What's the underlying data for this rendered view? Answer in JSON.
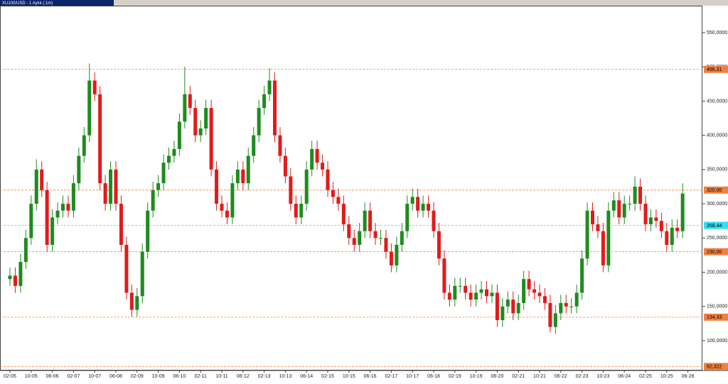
{
  "chart_data": {
    "type": "candlestick",
    "title": "XU100/USD - 1 Aylık (.1m)",
    "categories": [
      "02-05",
      null,
      null,
      null,
      "10-05",
      null,
      null,
      null,
      "06-06",
      null,
      null,
      null,
      "02-07",
      null,
      null,
      null,
      "10-07",
      null,
      null,
      null,
      "06-08",
      null,
      null,
      null,
      "02-09",
      null,
      null,
      null,
      "10-09",
      null,
      null,
      null,
      "06-10",
      null,
      null,
      null,
      "02-11",
      null,
      null,
      null,
      "10-11",
      null,
      null,
      null,
      "06-12",
      null,
      null,
      null,
      "02-13",
      null,
      null,
      null,
      "10-13",
      null,
      null,
      null,
      "06-14",
      null,
      null,
      null,
      "02-15",
      null,
      null,
      null,
      "10-15",
      null,
      null,
      null,
      "06-16",
      null,
      null,
      null,
      "02-17",
      null,
      null,
      null,
      "10-17",
      null,
      null,
      null,
      "06-18",
      null,
      null,
      null,
      "02-19",
      null,
      null,
      null,
      "10-19",
      null,
      null,
      null,
      "06-20",
      null,
      null,
      null,
      "02-21",
      null,
      null,
      null,
      "10-21",
      null,
      null,
      null,
      "06-22",
      null,
      null,
      null,
      "02-23",
      null,
      null,
      null,
      "10-23",
      null,
      null,
      null,
      "06-24",
      null,
      null,
      null,
      "02-25",
      null,
      null,
      null,
      "10-25",
      null,
      null,
      null,
      "06-26"
    ],
    "open": [
      190,
      195,
      180,
      215,
      250,
      300,
      350,
      320,
      240,
      280,
      290,
      300,
      290,
      330,
      370,
      400,
      480,
      460,
      330,
      300,
      350,
      300,
      240,
      170,
      145,
      165,
      230,
      290,
      320,
      330,
      360,
      370,
      380,
      420,
      460,
      440,
      400,
      410,
      440,
      350,
      300,
      290,
      280,
      330,
      350,
      330,
      370,
      400,
      440,
      460,
      480,
      400,
      370,
      340,
      300,
      280,
      300,
      350,
      380,
      360,
      350,
      320,
      310,
      300,
      270,
      250,
      240,
      260,
      290,
      260,
      250,
      250,
      230,
      210,
      240,
      260,
      300,
      310,
      290,
      300,
      290,
      260,
      220,
      170,
      160,
      180,
      180,
      170,
      160,
      170,
      175,
      165,
      170,
      130,
      150,
      160,
      140,
      155,
      190,
      175,
      170,
      165,
      155,
      120,
      140,
      155,
      150,
      150,
      170,
      220,
      290,
      270,
      260,
      210,
      290,
      305,
      280,
      300,
      300,
      325,
      300,
      270,
      280,
      275,
      260,
      240,
      265,
      260,
      null
    ],
    "high": [
      207,
      207,
      227,
      262,
      312,
      365,
      362,
      332,
      292,
      302,
      312,
      312,
      342,
      382,
      412,
      505,
      492,
      472,
      342,
      362,
      362,
      312,
      252,
      182,
      177,
      242,
      302,
      332,
      342,
      372,
      382,
      392,
      432,
      500,
      472,
      452,
      422,
      452,
      452,
      362,
      312,
      302,
      342,
      362,
      362,
      382,
      412,
      452,
      472,
      498,
      492,
      412,
      382,
      352,
      312,
      312,
      362,
      392,
      392,
      372,
      362,
      332,
      322,
      312,
      282,
      262,
      272,
      302,
      302,
      272,
      262,
      262,
      242,
      252,
      272,
      312,
      322,
      322,
      312,
      312,
      302,
      272,
      232,
      182,
      192,
      192,
      192,
      182,
      182,
      187,
      187,
      182,
      182,
      162,
      172,
      172,
      167,
      202,
      202,
      187,
      182,
      177,
      167,
      152,
      167,
      167,
      162,
      182,
      232,
      302,
      302,
      282,
      272,
      302,
      317,
      317,
      312,
      312,
      340,
      337,
      312,
      292,
      292,
      287,
      272,
      277,
      277,
      330,
      null
    ],
    "low": [
      180,
      170,
      170,
      205,
      240,
      290,
      310,
      230,
      230,
      270,
      280,
      280,
      280,
      320,
      360,
      390,
      450,
      320,
      290,
      290,
      290,
      230,
      160,
      135,
      135,
      155,
      220,
      280,
      310,
      320,
      350,
      360,
      370,
      410,
      430,
      390,
      390,
      400,
      340,
      290,
      280,
      270,
      270,
      320,
      320,
      320,
      360,
      390,
      430,
      450,
      390,
      360,
      330,
      290,
      270,
      270,
      290,
      340,
      350,
      340,
      310,
      300,
      290,
      260,
      240,
      230,
      230,
      250,
      250,
      240,
      240,
      220,
      200,
      200,
      230,
      250,
      290,
      280,
      280,
      280,
      250,
      210,
      160,
      150,
      150,
      170,
      160,
      150,
      150,
      160,
      155,
      155,
      120,
      120,
      140,
      130,
      130,
      145,
      165,
      160,
      155,
      145,
      112,
      110,
      130,
      140,
      140,
      140,
      160,
      210,
      260,
      250,
      200,
      200,
      280,
      270,
      270,
      290,
      290,
      290,
      260,
      260,
      265,
      250,
      230,
      230,
      250,
      250,
      null
    ],
    "close": [
      195,
      180,
      215,
      250,
      300,
      350,
      320,
      240,
      280,
      290,
      300,
      290,
      330,
      370,
      400,
      480,
      460,
      330,
      300,
      350,
      300,
      240,
      170,
      145,
      165,
      230,
      290,
      320,
      330,
      360,
      370,
      380,
      420,
      460,
      440,
      400,
      410,
      440,
      350,
      300,
      290,
      280,
      330,
      350,
      330,
      370,
      400,
      440,
      460,
      480,
      400,
      370,
      340,
      300,
      280,
      300,
      350,
      380,
      360,
      350,
      320,
      310,
      300,
      270,
      250,
      240,
      260,
      290,
      260,
      250,
      250,
      230,
      210,
      240,
      260,
      300,
      310,
      290,
      300,
      290,
      260,
      220,
      170,
      160,
      180,
      180,
      170,
      160,
      170,
      175,
      165,
      170,
      130,
      150,
      160,
      140,
      155,
      190,
      175,
      170,
      165,
      155,
      120,
      140,
      155,
      150,
      150,
      170,
      220,
      290,
      270,
      260,
      210,
      290,
      305,
      280,
      300,
      300,
      325,
      300,
      270,
      280,
      275,
      260,
      240,
      265,
      260,
      315,
      null
    ],
    "up_color": "#1e8c1e",
    "down_color": "#e01b1b",
    "ylim": [
      56.4,
      589.4
    ],
    "yticks": [
      {
        "value": 100,
        "label": "100,0000"
      },
      {
        "value": 150,
        "label": "150,0000"
      },
      {
        "value": 200,
        "label": "200,0000"
      },
      {
        "value": 250,
        "label": "250,0000"
      },
      {
        "value": 300,
        "label": "300,0000"
      },
      {
        "value": 350,
        "label": "350,0000"
      },
      {
        "value": 400,
        "label": "400,0000"
      },
      {
        "value": 450,
        "label": "450,0000"
      },
      {
        "value": 500,
        "label": "500,0000"
      },
      {
        "value": 550,
        "label": "550,0000"
      }
    ],
    "levels": [
      {
        "value": 496.31,
        "label": "496,31",
        "color": "#f08040"
      },
      {
        "value": 320,
        "label": "320,00",
        "color": "#f08040"
      },
      {
        "value": 268.44,
        "label": "268,44",
        "color": "#30e0f0"
      },
      {
        "value": 230,
        "label": "230,00",
        "color": "#f08040"
      },
      {
        "value": 134.33,
        "label": "134,33",
        "color": "#f08040"
      },
      {
        "value": 62.322,
        "label": "62,322",
        "color": "#f08040"
      }
    ]
  }
}
